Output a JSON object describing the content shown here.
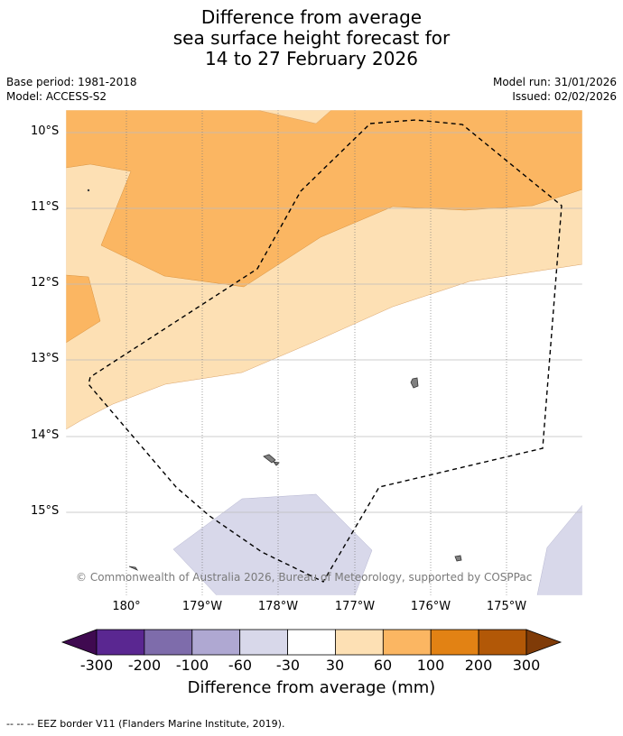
{
  "title": {
    "line1": "Difference from average",
    "line2": "sea surface height forecast for",
    "line3": "14 to 27 February 2026"
  },
  "meta": {
    "base_period": "Base period: 1981-2018",
    "model": "Model: ACCESS-S2",
    "model_run": "Model run: 31/01/2026",
    "issued": "Issued: 02/02/2026"
  },
  "map": {
    "latitude_labels": [
      "10°S",
      "11°S",
      "12°S",
      "13°S",
      "14°S",
      "15°S"
    ],
    "longitude_labels": [
      "180°",
      "179°W",
      "178°W",
      "177°W",
      "176°W",
      "175°W"
    ],
    "copyright": "© Commonwealth of Australia 2026, Bureau of Meteorology, supported by COSPPac",
    "colors": {
      "band_30_60": "#fde0b4",
      "band_60_100": "#fbb662",
      "band_m60_m30": "#d8d8ea",
      "land": "#808080"
    }
  },
  "legend": {
    "title": "Difference from average (mm)",
    "ticks": [
      "-300",
      "-200",
      "-100",
      "-60",
      "-30",
      "30",
      "60",
      "100",
      "200",
      "300"
    ],
    "colors": [
      "#3f0a50",
      "#5a2791",
      "#7e6cab",
      "#afa8d2",
      "#d8d8ea",
      "#ffffff",
      "#fde0b4",
      "#fbb662",
      "#e28214",
      "#b25807",
      "#7f3b08"
    ]
  },
  "footer": {
    "eez_note": "--  --  -- EEZ border V11 (Flanders Marine Institute, 2019)."
  }
}
